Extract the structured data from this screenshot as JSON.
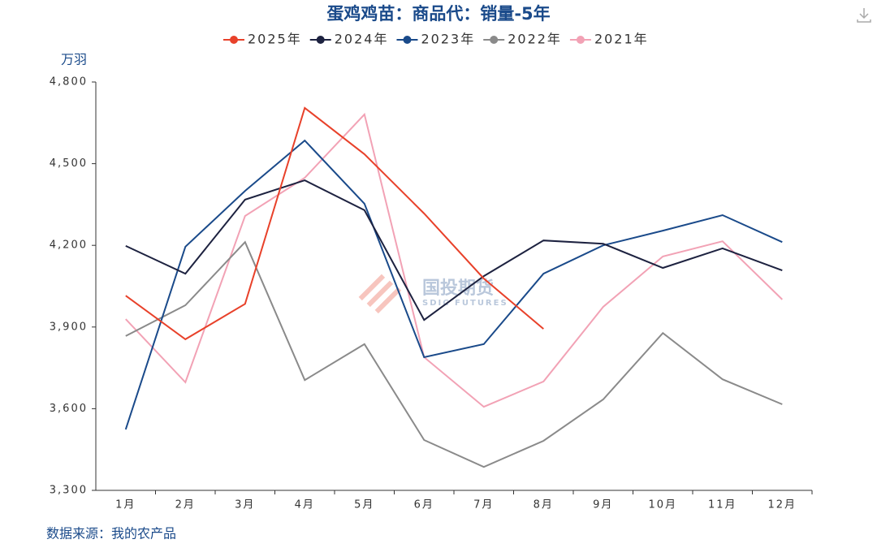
{
  "chart_data": {
    "type": "line",
    "title": "蛋鸡鸡苗：商品代：销量-5年",
    "y_label": "万羽",
    "source": "数据来源：我的农产品",
    "watermark": [
      "国投期货",
      "SDIC FUTURES"
    ],
    "categories": [
      "1月",
      "2月",
      "3月",
      "4月",
      "5月",
      "6月",
      "7月",
      "8月",
      "9月",
      "10月",
      "11月",
      "12月"
    ],
    "series": [
      {
        "name": "2025年",
        "color": "#e8412a",
        "values": [
          4015,
          3855,
          3985,
          4705,
          4535,
          4317,
          4078,
          3893,
          null,
          null,
          null,
          null
        ]
      },
      {
        "name": "2024年",
        "color": "#1d2240",
        "values": [
          4198,
          4096,
          4368,
          4439,
          4329,
          3926,
          4087,
          4218,
          4206,
          4117,
          4189,
          4108
        ]
      },
      {
        "name": "2023年",
        "color": "#1a4a8a",
        "values": [
          3524,
          4195,
          4400,
          4585,
          4353,
          3789,
          3837,
          4096,
          4200,
          4254,
          4311,
          4212
        ]
      },
      {
        "name": "2022年",
        "color": "#8a8a8a",
        "values": [
          3867,
          3980,
          4212,
          3705,
          3837,
          3485,
          3386,
          3482,
          3634,
          3878,
          3708,
          3616
        ]
      },
      {
        "name": "2021年",
        "color": "#f2a2b5",
        "values": [
          3929,
          3697,
          4308,
          4448,
          4681,
          3789,
          3607,
          3700,
          3974,
          4159,
          4215,
          4001
        ]
      }
    ],
    "ylim": [
      3300,
      4800
    ],
    "yticks": [
      {
        "value": 3300,
        "label": "3,300"
      },
      {
        "value": 3600,
        "label": "3,600"
      },
      {
        "value": 3900,
        "label": "3,900"
      },
      {
        "value": 4200,
        "label": "4,200"
      },
      {
        "value": 4500,
        "label": "4,500"
      },
      {
        "value": 4800,
        "label": "4,800"
      }
    ]
  }
}
